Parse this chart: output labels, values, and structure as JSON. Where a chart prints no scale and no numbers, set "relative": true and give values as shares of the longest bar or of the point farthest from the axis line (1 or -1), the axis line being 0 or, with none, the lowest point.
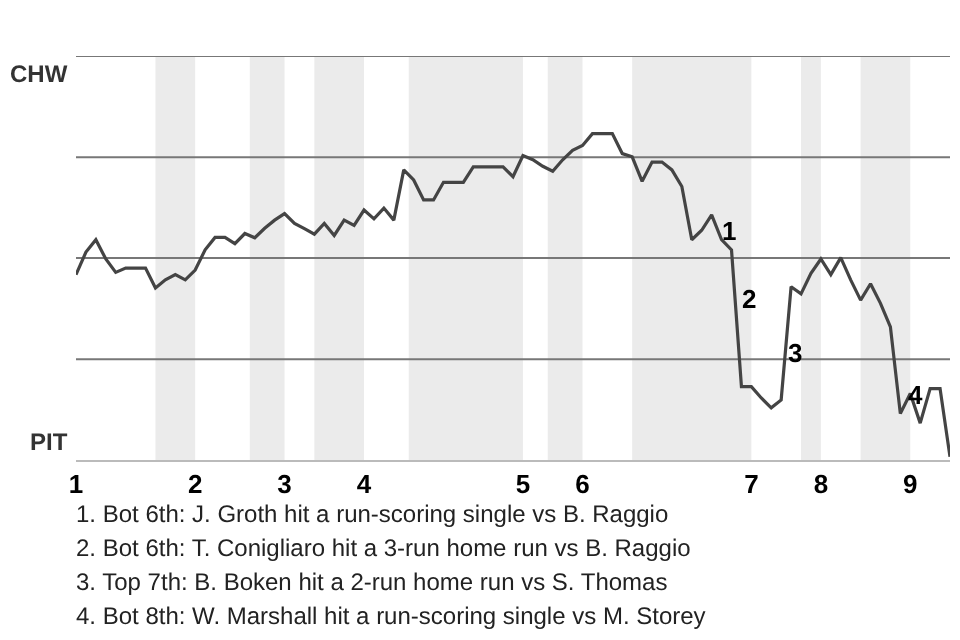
{
  "chart_data": {
    "type": "line",
    "relative": true,
    "categories": [
      "1",
      null,
      null,
      null,
      null,
      null,
      null,
      null,
      null,
      null,
      null,
      null,
      "2",
      null,
      null,
      null,
      null,
      null,
      null,
      null,
      null,
      "3",
      null,
      null,
      null,
      null,
      null,
      null,
      null,
      "4",
      null,
      null,
      null,
      null,
      null,
      null,
      null,
      null,
      null,
      null,
      null,
      null,
      null,
      null,
      null,
      "5",
      null,
      null,
      null,
      null,
      null,
      "6",
      null,
      null,
      null,
      null,
      null,
      null,
      null,
      null,
      null,
      null,
      null,
      null,
      null,
      null,
      null,
      null,
      "7",
      null,
      null,
      null,
      null,
      null,
      null,
      "8",
      null,
      null,
      null,
      null,
      null,
      null,
      null,
      null,
      "9",
      null,
      null,
      null,
      null
    ],
    "series": [
      {
        "color": "#444444",
        "values": [
          0.568,
          0.637,
          0.675,
          0.616,
          0.575,
          0.588,
          0.588,
          0.588,
          0.527,
          0.552,
          0.568,
          0.552,
          0.582,
          0.644,
          0.682,
          0.682,
          0.663,
          0.694,
          0.681,
          0.71,
          0.735,
          0.755,
          0.725,
          0.709,
          0.692,
          0.725,
          0.688,
          0.735,
          0.719,
          0.766,
          0.739,
          0.772,
          0.735,
          0.889,
          0.858,
          0.797,
          0.797,
          0.851,
          0.851,
          0.851,
          0.898,
          0.898,
          0.898,
          0.898,
          0.868,
          0.933,
          0.92,
          0.9,
          0.885,
          0.92,
          0.949,
          0.964,
          1,
          1,
          1,
          0.939,
          0.929,
          0.854,
          0.913,
          0.913,
          0.889,
          0.838,
          0.675,
          0.704,
          0.751,
          0.675,
          0.644,
          0.225,
          0.225,
          0.19,
          0.16,
          0.184,
          0.531,
          0.509,
          0.572,
          0.616,
          0.568,
          0.62,
          0.552,
          0.49,
          0.54,
          0.48,
          0.408,
          0.142,
          0.204,
          0.113,
          0.219,
          0.219,
          0.01
        ]
      }
    ],
    "marker": "none",
    "line_style": "solid",
    "ref_lines": [
      {
        "axis": "y",
        "value": 0.309,
        "color": "#777777"
      },
      {
        "axis": "y",
        "value": 0.619,
        "color": "#777777"
      },
      {
        "axis": "y",
        "value": 0.928,
        "color": "#777777"
      },
      {
        "axis": "y",
        "value": 1.238,
        "color": "#777777"
      }
    ],
    "annotations": [
      "CHW",
      "PIT",
      "1",
      "2",
      "3",
      "4",
      "1. Bot 6th: J. Groth hit a run-scoring single vs B. Raggio",
      "2. Bot 6th: T. Conigliaro hit a 3-run home run vs B. Raggio",
      "3. Top 7th: B. Boken hit a 2-run home run vs S. Thomas",
      "4. Bot 8th: W. Marshall hit a run-scoring single vs M. Storey"
    ]
  }
}
